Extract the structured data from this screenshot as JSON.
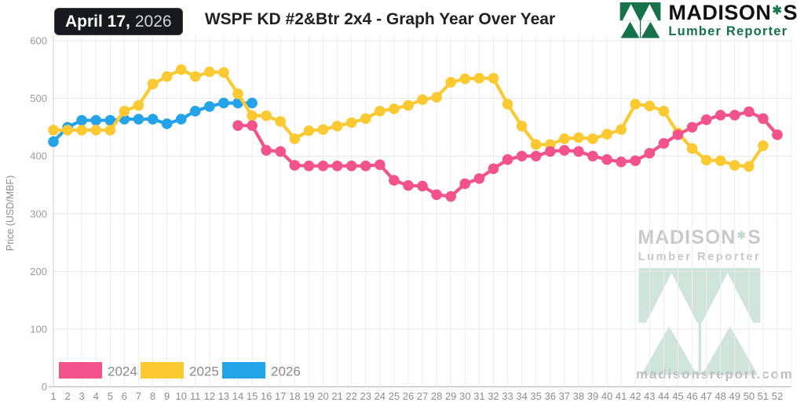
{
  "header": {
    "date_bold": "April 17,",
    "date_year": "2026",
    "title": "WSPF KD #2&Btr 2x4 - Graph Year Over Year",
    "brand_main": "MADISON",
    "brand_suffix": "S",
    "brand_subtitle": "Lumber Reporter",
    "brand_green": "#15724b"
  },
  "watermark": {
    "brand_main": "MADISON",
    "brand_suffix": "S",
    "subtitle": "Lumber Reporter",
    "website": "madisonsreport.com",
    "mint_color": "#cfe4da"
  },
  "chart_data": {
    "type": "line",
    "title": "WSPF KD #2&Btr 2x4 - Graph Year Over Year",
    "xlabel": "",
    "ylabel": "Price (USD/MBF)",
    "ylim": [
      0,
      600
    ],
    "y_ticks": [
      0,
      100,
      200,
      300,
      400,
      500,
      600
    ],
    "x_ticks": [
      1,
      2,
      3,
      4,
      5,
      6,
      7,
      8,
      9,
      10,
      11,
      12,
      13,
      14,
      15,
      16,
      17,
      18,
      19,
      20,
      21,
      22,
      23,
      24,
      25,
      26,
      27,
      28,
      29,
      30,
      31,
      32,
      33,
      34,
      35,
      36,
      37,
      38,
      39,
      40,
      41,
      42,
      43,
      44,
      45,
      46,
      47,
      48,
      49,
      50,
      51,
      52
    ],
    "grid": true,
    "legend_position": "bottom-left",
    "series": [
      {
        "name": "2024",
        "color": "#F2538B",
        "start_week": 14,
        "values": [
          453,
          453,
          410,
          408,
          384,
          383,
          383,
          383,
          383,
          383,
          385,
          358,
          349,
          348,
          333,
          330,
          352,
          361,
          378,
          394,
          400,
          400,
          408,
          410,
          408,
          400,
          394,
          390,
          392,
          405,
          422,
          437,
          450,
          463,
          471,
          471,
          477,
          465,
          437
        ]
      },
      {
        "name": "2025",
        "color": "#FBCA33",
        "start_week": 1,
        "values": [
          445,
          445,
          445,
          445,
          445,
          478,
          488,
          525,
          538,
          550,
          538,
          546,
          545,
          508,
          470,
          470,
          460,
          430,
          444,
          446,
          452,
          458,
          465,
          478,
          482,
          488,
          498,
          502,
          528,
          534,
          535,
          535,
          490,
          452,
          420,
          420,
          430,
          432,
          430,
          438,
          446,
          490,
          487,
          478,
          440,
          413,
          393,
          392,
          384,
          382,
          418
        ]
      },
      {
        "name": "2026",
        "color": "#25A3E8",
        "start_week": 1,
        "values": [
          425,
          450,
          462,
          462,
          462,
          464,
          464,
          464,
          456,
          464,
          478,
          486,
          492,
          492,
          492
        ]
      }
    ]
  }
}
